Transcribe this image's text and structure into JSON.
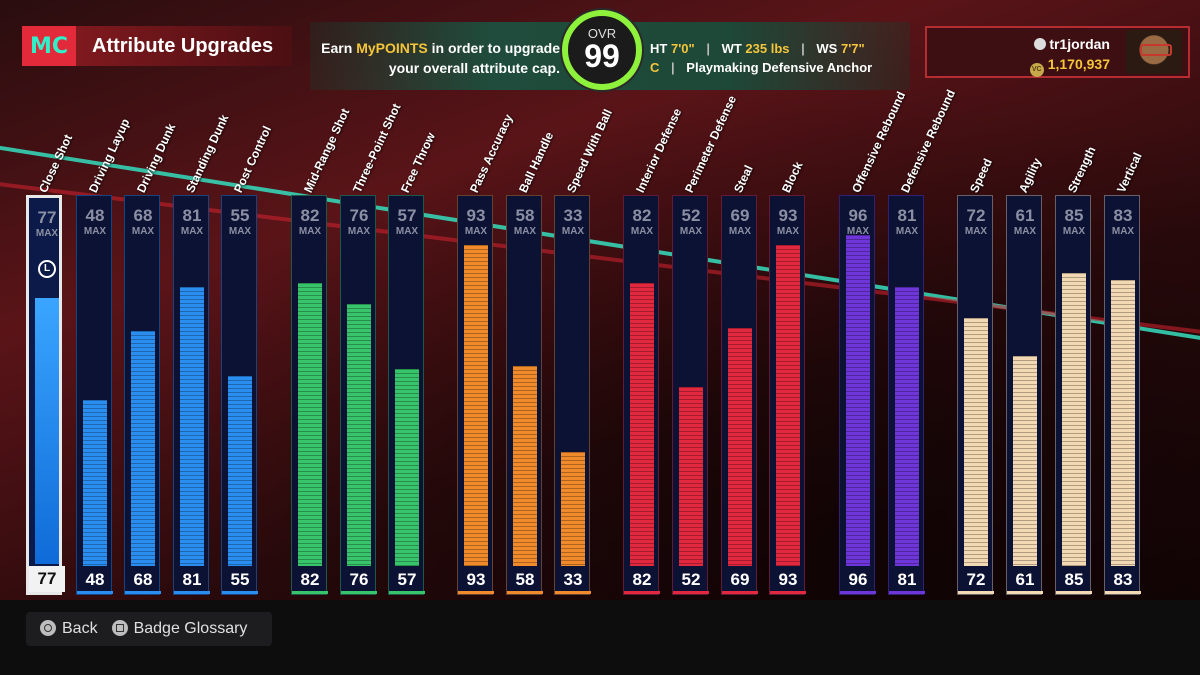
{
  "header": {
    "logo": "MC",
    "title": "Attribute Upgrades",
    "earn_prefix": "Earn ",
    "earn_highlight": "MyPOINTS",
    "earn_suffix_line1": " in order to upgrade",
    "earn_line2": "your overall attribute cap.",
    "ovr_label": "OVR",
    "ovr_value": "99",
    "ht_label": "HT",
    "ht_value": "7'0\"",
    "wt_label": "WT",
    "wt_value": "235 lbs",
    "ws_label": "WS",
    "ws_value": "7'7\"",
    "position": "C",
    "archetype": "Playmaking Defensive Anchor"
  },
  "user": {
    "name": "tr1jordan",
    "vc": "1,170,937",
    "vc_icon_text": "VC"
  },
  "max_label": "MAX",
  "lock_label": "L",
  "colors": {
    "blue": "#2a8ef0",
    "green": "#38c46a",
    "orange": "#f08a2a",
    "red": "#e2283f",
    "purple": "#6e35d8",
    "cream": "#f2d8b3"
  },
  "attributes": [
    {
      "name": "Close Shot",
      "max": "77",
      "value": "77",
      "level": 77,
      "group": "blue",
      "selected": true
    },
    {
      "name": "Driving Layup",
      "max": "48",
      "value": "48",
      "level": 48,
      "group": "blue"
    },
    {
      "name": "Driving Dunk",
      "max": "68",
      "value": "68",
      "level": 68,
      "group": "blue"
    },
    {
      "name": "Standing Dunk",
      "max": "81",
      "value": "81",
      "level": 81,
      "group": "blue"
    },
    {
      "name": "Post Control",
      "max": "55",
      "value": "55",
      "level": 55,
      "group": "blue"
    },
    {
      "name": "Mid-Range Shot",
      "max": "82",
      "value": "82",
      "level": 82,
      "group": "green"
    },
    {
      "name": "Three-Point Shot",
      "max": "76",
      "value": "76",
      "level": 76,
      "group": "green"
    },
    {
      "name": "Free Throw",
      "max": "57",
      "value": "57",
      "level": 57,
      "group": "green"
    },
    {
      "name": "Pass Accuracy",
      "max": "93",
      "value": "93",
      "level": 93,
      "group": "orange"
    },
    {
      "name": "Ball Handle",
      "max": "58",
      "value": "58",
      "level": 58,
      "group": "orange"
    },
    {
      "name": "Speed With Ball",
      "max": "33",
      "value": "33",
      "level": 33,
      "group": "orange"
    },
    {
      "name": "Interior Defense",
      "max": "82",
      "value": "82",
      "level": 82,
      "group": "red"
    },
    {
      "name": "Perimeter Defense",
      "max": "52",
      "value": "52",
      "level": 52,
      "group": "red"
    },
    {
      "name": "Steal",
      "max": "69",
      "value": "69",
      "level": 69,
      "group": "red"
    },
    {
      "name": "Block",
      "max": "93",
      "value": "93",
      "level": 93,
      "group": "red"
    },
    {
      "name": "Offensive Rebound",
      "max": "96",
      "value": "96",
      "level": 96,
      "group": "purple"
    },
    {
      "name": "Defensive Rebound",
      "max": "81",
      "value": "81",
      "level": 81,
      "group": "purple"
    },
    {
      "name": "Speed",
      "max": "72",
      "value": "72",
      "level": 72,
      "group": "cream"
    },
    {
      "name": "Agility",
      "max": "61",
      "value": "61",
      "level": 61,
      "group": "cream"
    },
    {
      "name": "Strength",
      "max": "85",
      "value": "85",
      "level": 85,
      "group": "cream"
    },
    {
      "name": "Vertical",
      "max": "83",
      "value": "83",
      "level": 83,
      "group": "cream"
    }
  ],
  "footer": {
    "back_label": "Back",
    "glossary_label": "Badge Glossary"
  }
}
